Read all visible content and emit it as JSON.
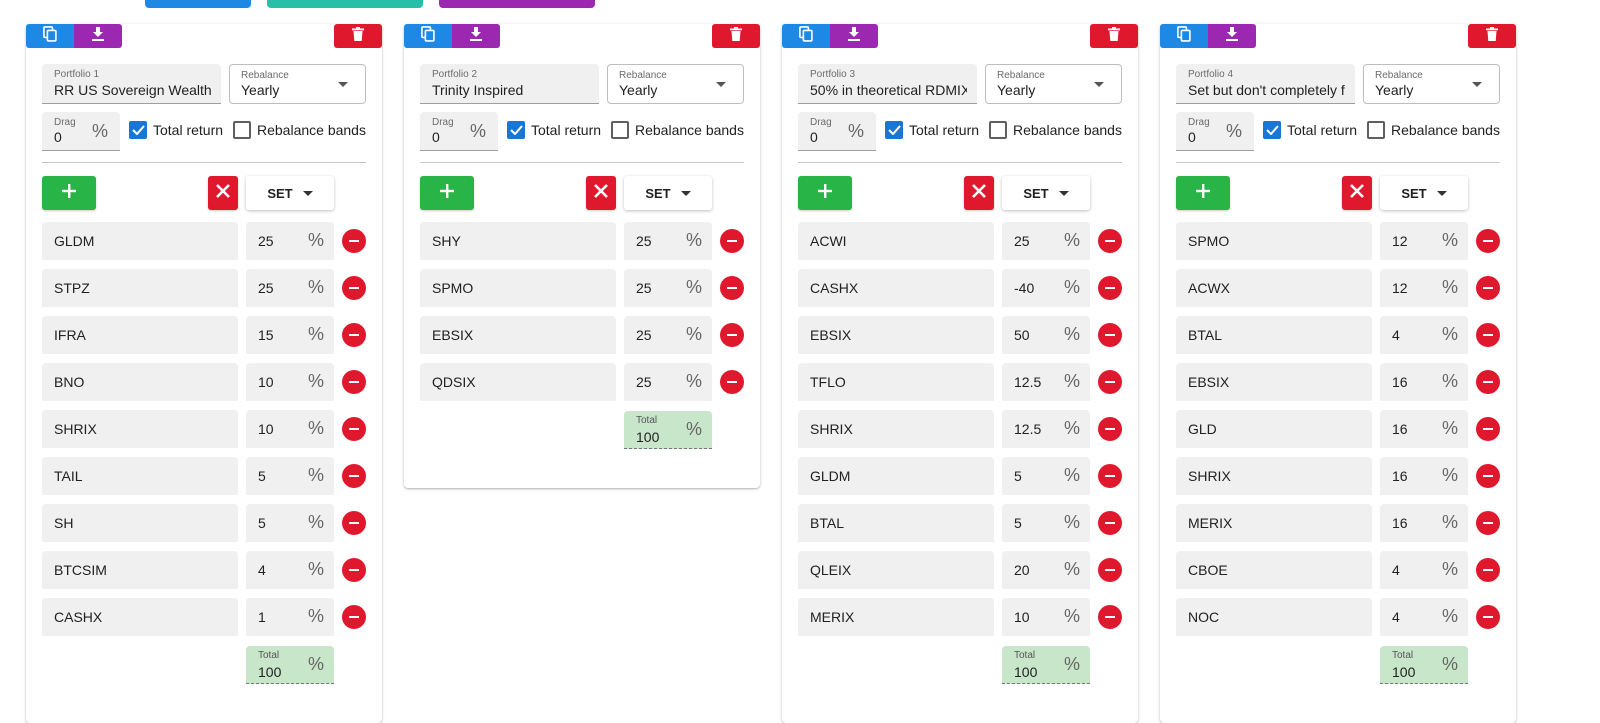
{
  "colors": {
    "blue": "#1e88e5",
    "purple": "#9c27b0",
    "red": "#e0182d",
    "green": "#28b446",
    "teal": "#26bfa8",
    "total_bg": "#c8e6c9"
  },
  "icons": {
    "copy": "copy-icon",
    "download": "download-icon",
    "delete": "trash-icon",
    "add": "plus-icon",
    "clear": "close-icon",
    "remove": "minus-circle-icon"
  },
  "labels": {
    "rebalance": "Rebalance",
    "drag": "Drag",
    "percent": "%",
    "total_return": "Total return",
    "rebalance_bands": "Rebalance bands",
    "set": "SET",
    "total": "Total"
  },
  "portfolios": [
    {
      "label": "Portfolio 1",
      "name": "RR US Sovereign Wealth Fund",
      "rebalance": "Yearly",
      "drag": "0",
      "total_return": true,
      "rebalance_bands": false,
      "total": "100",
      "holdings": [
        {
          "ticker": "GLDM",
          "weight": "25"
        },
        {
          "ticker": "STPZ",
          "weight": "25"
        },
        {
          "ticker": "IFRA",
          "weight": "15"
        },
        {
          "ticker": "BNO",
          "weight": "10"
        },
        {
          "ticker": "SHRIX",
          "weight": "10"
        },
        {
          "ticker": "TAIL",
          "weight": "5"
        },
        {
          "ticker": "SH",
          "weight": "5"
        },
        {
          "ticker": "BTCSIM",
          "weight": "4"
        },
        {
          "ticker": "CASHX",
          "weight": "1"
        }
      ]
    },
    {
      "label": "Portfolio 2",
      "name": "Trinity Inspired",
      "rebalance": "Yearly",
      "drag": "0",
      "total_return": true,
      "rebalance_bands": false,
      "total": "100",
      "holdings": [
        {
          "ticker": "SHY",
          "weight": "25"
        },
        {
          "ticker": "SPMO",
          "weight": "25"
        },
        {
          "ticker": "EBSIX",
          "weight": "25"
        },
        {
          "ticker": "QDSIX",
          "weight": "25"
        }
      ]
    },
    {
      "label": "Portfolio 3",
      "name": "50% in theoretical RDMIX",
      "rebalance": "Yearly",
      "drag": "0",
      "total_return": true,
      "rebalance_bands": false,
      "total": "100",
      "holdings": [
        {
          "ticker": "ACWI",
          "weight": "25"
        },
        {
          "ticker": "CASHX",
          "weight": "-40"
        },
        {
          "ticker": "EBSIX",
          "weight": "50"
        },
        {
          "ticker": "TFLO",
          "weight": "12.5"
        },
        {
          "ticker": "SHRIX",
          "weight": "12.5"
        },
        {
          "ticker": "GLDM",
          "weight": "5"
        },
        {
          "ticker": "BTAL",
          "weight": "5"
        },
        {
          "ticker": "QLEIX",
          "weight": "20"
        },
        {
          "ticker": "MERIX",
          "weight": "10"
        }
      ]
    },
    {
      "label": "Portfolio 4",
      "name": "Set but don't completely forget",
      "rebalance": "Yearly",
      "drag": "0",
      "total_return": true,
      "rebalance_bands": false,
      "total": "100",
      "holdings": [
        {
          "ticker": "SPMO",
          "weight": "12"
        },
        {
          "ticker": "ACWX",
          "weight": "12"
        },
        {
          "ticker": "BTAL",
          "weight": "4"
        },
        {
          "ticker": "EBSIX",
          "weight": "16"
        },
        {
          "ticker": "GLD",
          "weight": "16"
        },
        {
          "ticker": "SHRIX",
          "weight": "16"
        },
        {
          "ticker": "MERIX",
          "weight": "16"
        },
        {
          "ticker": "CBOE",
          "weight": "4"
        },
        {
          "ticker": "NOC",
          "weight": "4"
        }
      ]
    }
  ]
}
